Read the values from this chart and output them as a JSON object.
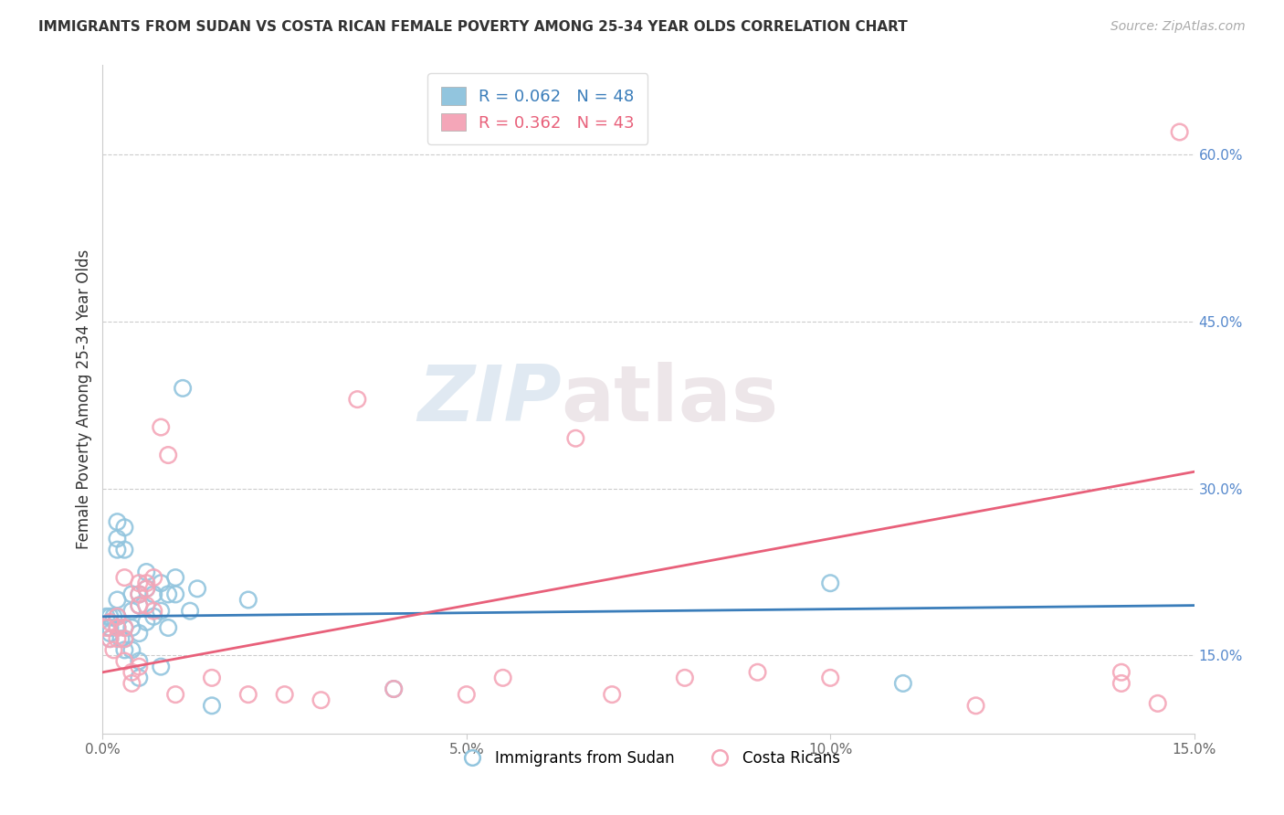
{
  "title": "IMMIGRANTS FROM SUDAN VS COSTA RICAN FEMALE POVERTY AMONG 25-34 YEAR OLDS CORRELATION CHART",
  "source": "Source: ZipAtlas.com",
  "ylabel": "Female Poverty Among 25-34 Year Olds",
  "xlim": [
    0,
    0.15
  ],
  "ylim": [
    0.08,
    0.68
  ],
  "right_yticks": [
    0.15,
    0.3,
    0.45,
    0.6
  ],
  "right_yticklabels": [
    "15.0%",
    "30.0%",
    "45.0%",
    "60.0%"
  ],
  "xticks": [
    0.0,
    0.05,
    0.1,
    0.15
  ],
  "xticklabels": [
    "0.0%",
    "5.0%",
    "10.0%",
    "15.0%"
  ],
  "hlines": [
    0.15,
    0.3,
    0.45,
    0.6
  ],
  "blue_color": "#92c5de",
  "pink_color": "#f4a6b8",
  "blue_edge_color": "#5ba3cb",
  "pink_edge_color": "#e8607a",
  "blue_line_color": "#3a7dba",
  "pink_line_color": "#e8607a",
  "blue_label": "Immigrants from Sudan",
  "pink_label": "Costa Ricans",
  "blue_R": 0.062,
  "blue_N": 48,
  "pink_R": 0.362,
  "pink_N": 43,
  "watermark_zip": "ZIP",
  "watermark_atlas": "atlas",
  "blue_line_y0": 0.185,
  "blue_line_y1": 0.195,
  "pink_line_y0": 0.135,
  "pink_line_y1": 0.315,
  "blue_x": [
    0.0005,
    0.0007,
    0.001,
    0.001,
    0.001,
    0.001,
    0.0015,
    0.002,
    0.002,
    0.002,
    0.002,
    0.002,
    0.002,
    0.0025,
    0.003,
    0.003,
    0.003,
    0.003,
    0.003,
    0.004,
    0.004,
    0.004,
    0.004,
    0.005,
    0.005,
    0.005,
    0.005,
    0.005,
    0.006,
    0.006,
    0.006,
    0.007,
    0.007,
    0.008,
    0.008,
    0.008,
    0.009,
    0.009,
    0.01,
    0.01,
    0.011,
    0.012,
    0.013,
    0.015,
    0.02,
    0.04,
    0.1,
    0.11
  ],
  "blue_y": [
    0.185,
    0.175,
    0.185,
    0.175,
    0.17,
    0.165,
    0.185,
    0.27,
    0.255,
    0.245,
    0.2,
    0.185,
    0.175,
    0.165,
    0.265,
    0.245,
    0.175,
    0.165,
    0.155,
    0.205,
    0.19,
    0.175,
    0.155,
    0.205,
    0.195,
    0.17,
    0.145,
    0.13,
    0.225,
    0.21,
    0.18,
    0.205,
    0.185,
    0.215,
    0.19,
    0.14,
    0.205,
    0.175,
    0.22,
    0.205,
    0.39,
    0.19,
    0.21,
    0.105,
    0.2,
    0.12,
    0.215,
    0.125
  ],
  "pink_x": [
    0.0005,
    0.001,
    0.001,
    0.0015,
    0.002,
    0.002,
    0.002,
    0.003,
    0.003,
    0.003,
    0.003,
    0.004,
    0.004,
    0.005,
    0.005,
    0.005,
    0.005,
    0.006,
    0.006,
    0.006,
    0.007,
    0.007,
    0.008,
    0.009,
    0.01,
    0.015,
    0.02,
    0.025,
    0.03,
    0.035,
    0.04,
    0.05,
    0.055,
    0.065,
    0.07,
    0.08,
    0.09,
    0.1,
    0.12,
    0.14,
    0.14,
    0.145,
    0.148
  ],
  "pink_y": [
    0.175,
    0.18,
    0.165,
    0.155,
    0.185,
    0.175,
    0.165,
    0.22,
    0.175,
    0.165,
    0.145,
    0.135,
    0.125,
    0.215,
    0.205,
    0.195,
    0.14,
    0.215,
    0.21,
    0.195,
    0.22,
    0.19,
    0.355,
    0.33,
    0.115,
    0.13,
    0.115,
    0.115,
    0.11,
    0.38,
    0.12,
    0.115,
    0.13,
    0.345,
    0.115,
    0.13,
    0.135,
    0.13,
    0.105,
    0.135,
    0.125,
    0.107,
    0.62
  ]
}
